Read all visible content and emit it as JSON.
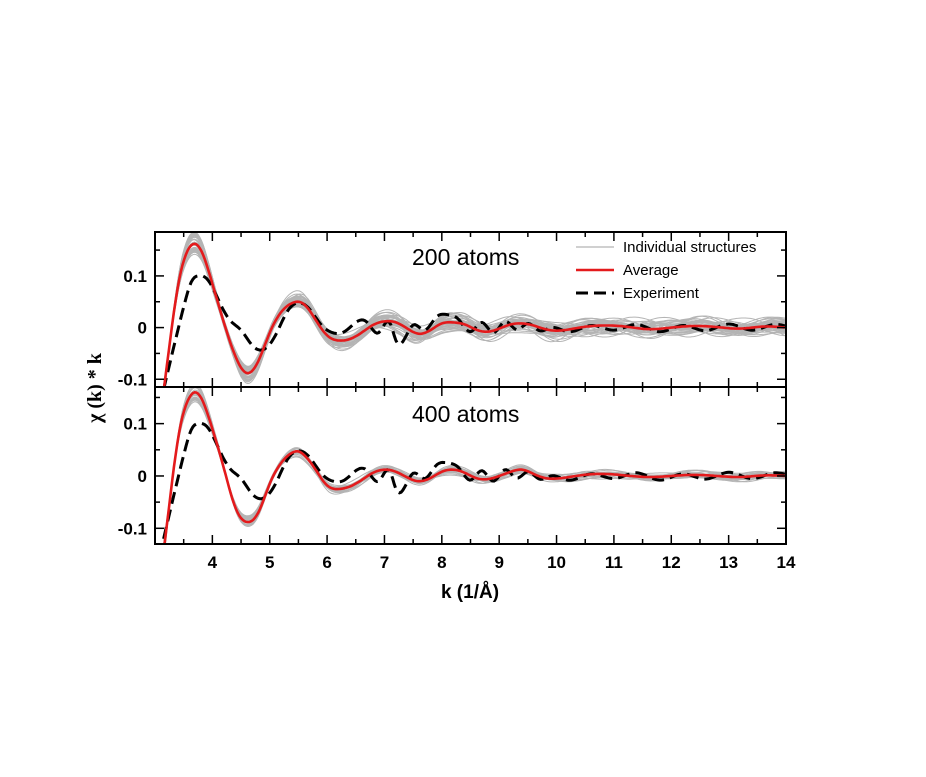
{
  "colors": {
    "individual": "#b4b4b4",
    "average": "#e41a1c",
    "experiment": "#000000"
  },
  "chart_data": [
    {
      "type": "line",
      "title": "200 atoms",
      "xlabel": "k (1/Å)",
      "ylabel": "χ (k) * k",
      "xlim": [
        3.0,
        14.0
      ],
      "ylim": [
        -0.115,
        0.185
      ],
      "yticks": [
        -0.1,
        0,
        0.1
      ],
      "ytick_labels": [
        "-0.1",
        "0",
        "0.1"
      ],
      "individual_count": 40,
      "individual_spread": 0.012,
      "legend": {
        "position": "top-right",
        "entries": [
          "Individual structures",
          "Average",
          "Experiment"
        ]
      },
      "series": [
        {
          "name": "Average",
          "x": [
            3.0,
            3.2,
            3.4,
            3.6,
            3.7,
            3.8,
            4.0,
            4.2,
            4.4,
            4.6,
            4.8,
            5.0,
            5.2,
            5.4,
            5.5,
            5.6,
            5.8,
            6.0,
            6.2,
            6.4,
            6.6,
            6.8,
            7.0,
            7.2,
            7.4,
            7.6,
            7.8,
            8.0,
            8.2,
            8.4,
            8.6,
            8.8,
            9.0,
            9.2,
            9.4,
            9.6,
            9.8,
            10.0,
            10.4,
            10.8,
            11.2,
            11.6,
            12.0,
            12.4,
            12.8,
            13.2,
            13.6,
            14.0
          ],
          "y": [
            -0.25,
            -0.08,
            0.08,
            0.155,
            0.162,
            0.15,
            0.085,
            0.01,
            -0.055,
            -0.088,
            -0.065,
            -0.01,
            0.03,
            0.048,
            0.05,
            0.045,
            0.015,
            -0.015,
            -0.025,
            -0.022,
            -0.01,
            0.005,
            0.012,
            0.01,
            -0.002,
            -0.012,
            -0.005,
            0.008,
            0.01,
            0.006,
            -0.004,
            -0.008,
            -0.002,
            0.006,
            0.008,
            0.004,
            -0.003,
            -0.006,
            0.0,
            0.004,
            0.002,
            -0.003,
            0.0,
            0.003,
            0.001,
            -0.002,
            0.002,
            0.0
          ]
        },
        {
          "name": "Experiment",
          "x": [
            3.15,
            3.3,
            3.5,
            3.65,
            3.75,
            3.9,
            4.1,
            4.3,
            4.5,
            4.7,
            4.9,
            5.1,
            5.3,
            5.5,
            5.7,
            5.9,
            6.1,
            6.3,
            6.5,
            6.7,
            6.9,
            7.1,
            7.2,
            7.3,
            7.5,
            7.7,
            7.9,
            8.1,
            8.3,
            8.5,
            8.7,
            8.9,
            9.1,
            9.3,
            9.5,
            9.7,
            9.9,
            10.2,
            10.6,
            11.0,
            11.4,
            11.8,
            12.2,
            12.6,
            13.0,
            13.4,
            13.8,
            14.0
          ],
          "y": [
            -0.12,
            -0.05,
            0.04,
            0.092,
            0.1,
            0.095,
            0.055,
            0.015,
            -0.005,
            -0.035,
            -0.042,
            -0.015,
            0.03,
            0.048,
            0.035,
            0.005,
            -0.01,
            -0.008,
            0.01,
            0.01,
            -0.01,
            0.008,
            -0.025,
            -0.03,
            0.005,
            -0.005,
            0.02,
            0.025,
            0.015,
            -0.008,
            0.01,
            -0.01,
            0.012,
            -0.004,
            0.008,
            -0.006,
            0.0,
            -0.008,
            0.004,
            -0.005,
            0.006,
            -0.008,
            0.004,
            -0.006,
            0.007,
            -0.005,
            0.006,
            0.003
          ]
        }
      ]
    },
    {
      "type": "line",
      "title": "400 atoms",
      "xlabel": "k (1/Å)",
      "ylabel": "χ (k) * k",
      "xlim": [
        3.0,
        14.0
      ],
      "ylim": [
        -0.13,
        0.17
      ],
      "yticks": [
        -0.1,
        0,
        0.1
      ],
      "ytick_labels": [
        "-0.1",
        "0",
        "0.1"
      ],
      "xticks": [
        4,
        5,
        6,
        7,
        8,
        9,
        10,
        11,
        12,
        13,
        14
      ],
      "xtick_labels": [
        "4",
        "5",
        "6",
        "7",
        "8",
        "9",
        "10",
        "11",
        "12",
        "13",
        "14"
      ],
      "individual_count": 20,
      "individual_spread": 0.006,
      "series": [
        {
          "name": "Average",
          "x": [
            3.0,
            3.2,
            3.4,
            3.6,
            3.7,
            3.8,
            4.0,
            4.2,
            4.4,
            4.6,
            4.8,
            5.0,
            5.2,
            5.4,
            5.5,
            5.6,
            5.8,
            6.0,
            6.2,
            6.4,
            6.6,
            6.8,
            7.0,
            7.2,
            7.4,
            7.6,
            7.8,
            8.0,
            8.2,
            8.4,
            8.6,
            8.8,
            9.0,
            9.2,
            9.4,
            9.6,
            9.8,
            10.0,
            10.4,
            10.8,
            11.2,
            11.6,
            12.0,
            12.4,
            12.8,
            13.2,
            13.6,
            14.0
          ],
          "y": [
            -0.27,
            -0.1,
            0.07,
            0.15,
            0.16,
            0.15,
            0.09,
            0.015,
            -0.06,
            -0.088,
            -0.07,
            -0.015,
            0.025,
            0.045,
            0.047,
            0.04,
            0.012,
            -0.018,
            -0.025,
            -0.02,
            -0.008,
            0.006,
            0.012,
            0.008,
            -0.003,
            -0.01,
            -0.004,
            0.008,
            0.012,
            0.006,
            -0.004,
            -0.006,
            0.0,
            0.008,
            0.012,
            0.004,
            -0.004,
            -0.005,
            0.001,
            0.004,
            0.001,
            -0.002,
            0.0,
            0.002,
            0.0,
            -0.002,
            0.001,
            0.0
          ]
        },
        {
          "name": "Experiment",
          "x": [
            3.15,
            3.3,
            3.5,
            3.65,
            3.75,
            3.9,
            4.1,
            4.3,
            4.5,
            4.7,
            4.9,
            5.1,
            5.3,
            5.5,
            5.7,
            5.9,
            6.1,
            6.3,
            6.5,
            6.7,
            6.9,
            7.1,
            7.2,
            7.3,
            7.5,
            7.7,
            7.9,
            8.1,
            8.3,
            8.5,
            8.7,
            8.9,
            9.1,
            9.3,
            9.5,
            9.7,
            9.9,
            10.2,
            10.6,
            11.0,
            11.4,
            11.8,
            12.2,
            12.6,
            13.0,
            13.4,
            13.8,
            14.0
          ],
          "y": [
            -0.12,
            -0.05,
            0.04,
            0.092,
            0.1,
            0.095,
            0.055,
            0.015,
            -0.005,
            -0.035,
            -0.042,
            -0.015,
            0.03,
            0.048,
            0.035,
            0.005,
            -0.01,
            -0.008,
            0.01,
            0.01,
            -0.01,
            0.008,
            -0.025,
            -0.03,
            0.005,
            -0.005,
            0.02,
            0.025,
            0.015,
            -0.008,
            0.01,
            -0.01,
            0.012,
            -0.004,
            0.008,
            -0.006,
            0.0,
            -0.008,
            0.004,
            -0.005,
            0.006,
            -0.008,
            0.004,
            -0.006,
            0.007,
            -0.005,
            0.006,
            0.003
          ]
        }
      ]
    }
  ]
}
